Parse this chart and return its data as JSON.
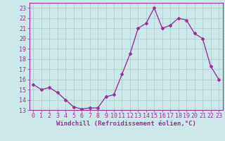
{
  "x": [
    0,
    1,
    2,
    3,
    4,
    5,
    6,
    7,
    8,
    9,
    10,
    11,
    12,
    13,
    14,
    15,
    16,
    17,
    18,
    19,
    20,
    21,
    22,
    23
  ],
  "y": [
    15.5,
    15.0,
    15.2,
    14.7,
    14.0,
    13.3,
    13.1,
    13.2,
    13.2,
    14.3,
    14.5,
    16.5,
    18.5,
    21.0,
    21.5,
    23.0,
    21.0,
    21.3,
    22.0,
    21.8,
    20.5,
    20.0,
    17.3,
    16.0
  ],
  "line_color": "#993399",
  "marker": "D",
  "markersize": 2,
  "bg_color": "#cce8e8",
  "grid_color": "#aacccc",
  "xlabel": "Windchill (Refroidissement éolien,°C)",
  "ylim": [
    13,
    23.5
  ],
  "yticks": [
    13,
    14,
    15,
    16,
    17,
    18,
    19,
    20,
    21,
    22,
    23
  ],
  "xticks": [
    0,
    1,
    2,
    3,
    4,
    5,
    6,
    7,
    8,
    9,
    10,
    11,
    12,
    13,
    14,
    15,
    16,
    17,
    18,
    19,
    20,
    21,
    22,
    23
  ],
  "xlabel_fontsize": 6.5,
  "tick_fontsize": 6,
  "tick_color": "#993399",
  "spine_color": "#993399",
  "linewidth": 1.0
}
